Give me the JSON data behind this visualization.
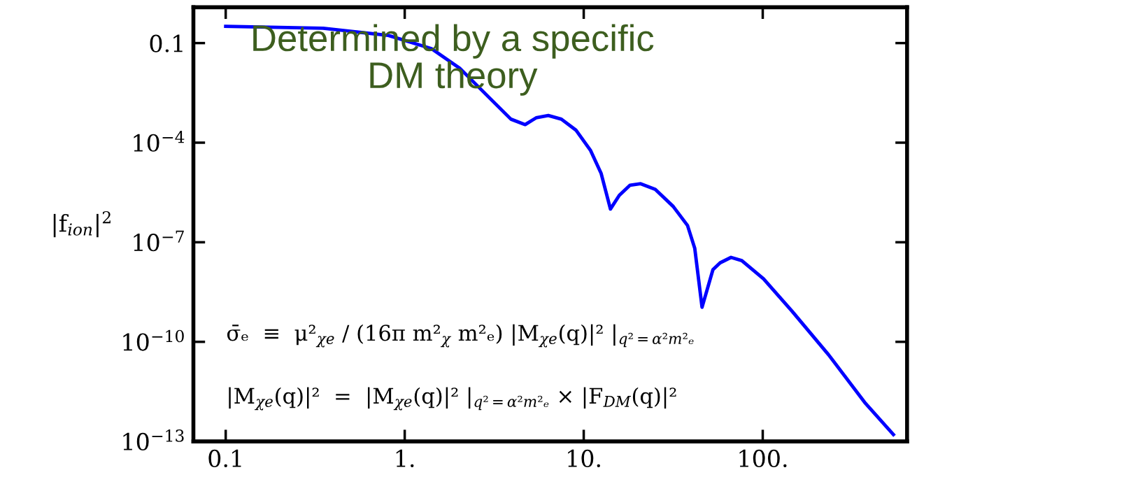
{
  "chart_data": {
    "type": "line",
    "ylabel": "|f$_{ion}$|$^{2}$",
    "x": [
      0.1,
      0.35,
      0.81,
      1.41,
      2.04,
      2.96,
      3.92,
      4.71,
      5.42,
      6.34,
      7.5,
      9.04,
      10.9,
      12.5,
      14.1,
      15.8,
      18.1,
      20.8,
      25.1,
      31.6,
      38,
      41.7,
      45.8,
      52.7,
      57.8,
      66.5,
      76.4,
      101,
      146,
      233,
      371,
      537
    ],
    "series": [
      {
        "color": "#0000ff",
        "values": [
          0.32,
          0.28,
          0.17,
          0.068,
          0.017,
          0.0023,
          0.00051,
          0.00035,
          0.00056,
          0.00066,
          0.00051,
          0.00024,
          5.9e-05,
          1.2e-05,
          1e-06,
          2.6e-06,
          5.2e-06,
          5.8e-06,
          3.9e-06,
          1.2e-06,
          3.2e-07,
          6.6e-08,
          1.1e-09,
          1.5e-08,
          2.4e-08,
          3.5e-08,
          2.8e-08,
          7.9e-09,
          8.3e-10,
          4.1e-11,
          1.5e-12,
          1.6e-13
        ]
      }
    ],
    "log": "xy",
    "xlim": [
      0.066,
      640
    ],
    "ylim": [
      1e-13,
      1.2
    ],
    "xticks": [
      {
        "value": 0.1,
        "label": "0.1"
      },
      {
        "value": 1,
        "label": "1."
      },
      {
        "value": 10,
        "label": "10."
      },
      {
        "value": 100,
        "label": "100."
      }
    ],
    "yticks": [
      {
        "value": 0.1,
        "label": "0.1"
      },
      {
        "value": 0.0001,
        "label": "10$^{−4}$"
      },
      {
        "value": 1e-07,
        "label": "10$^{−7}$"
      },
      {
        "value": 1e-10,
        "label": "10$^{−10}$"
      },
      {
        "value": 1e-13,
        "label": "10$^{−13}$"
      }
    ],
    "grid": false,
    "legend": false,
    "marker": "none",
    "line_style": "solid",
    "annotations": [
      "Determined by a specific\nDM theory",
      "σ̄ₑ  ≡  μ²$_{χe}$ / (16π m²$_{χ}$ m²ₑ) |M$_{χe}$(q)|² |$_{q²=α²m²ₑ}$",
      "|M$_{χe}$(q)|²  =  |M$_{χe}$(q)|² |$_{q²=α²m²ₑ}$ × |F$_{DM}$(q)|²"
    ]
  }
}
